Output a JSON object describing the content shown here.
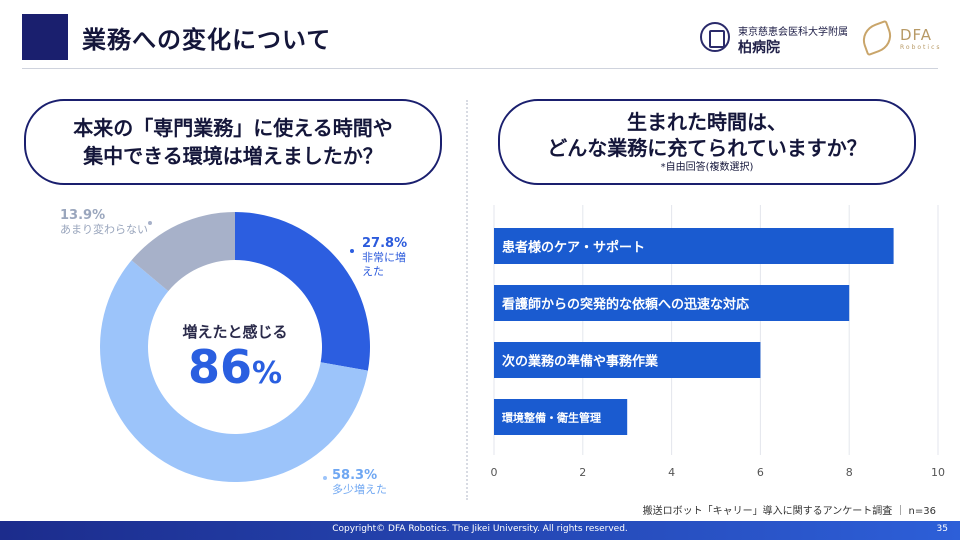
{
  "header": {
    "title": "業務への変化について",
    "hospital_logo_line1": "東京慈恵会医科大学附属",
    "hospital_logo_line2": "柏病院",
    "dfa_logo_name": "DFA",
    "dfa_logo_sub": "Robotics"
  },
  "left": {
    "question_line1": "本来の「専門業務」に使える時間や",
    "question_line2": "集中できる環境は増えましたか？",
    "center_caption": "増えたと感じる",
    "center_value": "86",
    "center_unit": "%"
  },
  "right": {
    "question_line1": "生まれた時間は、",
    "question_line2": "どんな業務に充てられていますか？",
    "note": "*自由回答(複数選択)"
  },
  "chart_data": [
    {
      "type": "pie",
      "title": "",
      "categories": [
        "非常に増えた",
        "多少増えた",
        "あまり変わらない"
      ],
      "values": [
        27.8,
        58.3,
        13.9
      ],
      "value_labels": [
        "27.8%",
        "58.3%",
        "13.9%"
      ],
      "colors": [
        "#2c5ee0",
        "#9cc4fa",
        "#a7b1c9"
      ],
      "donut": true
    },
    {
      "type": "bar",
      "orientation": "horizontal",
      "title": "",
      "categories": [
        "患者様のケア・サポート",
        "看護師からの突発的な依頼への迅速な対応",
        "次の業務の準備や事務作業",
        "環境整備・衛生管理"
      ],
      "values": [
        9,
        8,
        6,
        3
      ],
      "xlim": [
        0,
        10
      ],
      "xticks": [
        "0",
        "2",
        "4",
        "6",
        "8",
        "10"
      ],
      "grid": true,
      "bar_color": "#1a5bd0"
    }
  ],
  "source": "搬送ロボット「キャリー」導入に関するアンケート調査 ｜ n=36",
  "footer": {
    "copyright": "Copyright© DFA Robotics. The Jikei University. All rights reserved.",
    "page_number": "35"
  }
}
